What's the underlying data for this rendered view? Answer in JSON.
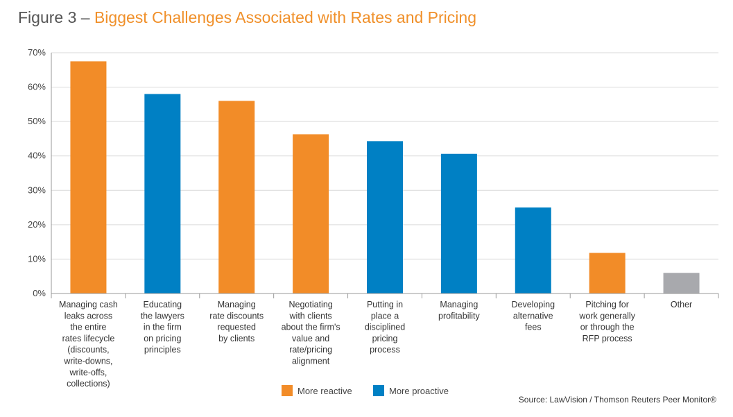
{
  "title": {
    "prefix": "Figure 3 – ",
    "main": "Biggest Challenges Associated with Rates and Pricing"
  },
  "source": "Source: LawVision / Thomson Reuters Peer Monitor®",
  "colors": {
    "reactive": "#f28c28",
    "proactive": "#0080c4",
    "other": "#a8a9ad",
    "grid": "#d9d9d9",
    "axis": "#999999"
  },
  "chart_data": {
    "type": "bar",
    "title": "Biggest Challenges Associated with Rates and Pricing",
    "xlabel": "",
    "ylabel": "",
    "ylim": [
      0,
      70
    ],
    "yticks": [
      0,
      10,
      20,
      30,
      40,
      50,
      60,
      70
    ],
    "ytick_labels": [
      "0%",
      "10%",
      "20%",
      "30%",
      "40%",
      "50%",
      "60%",
      "70%"
    ],
    "grid": true,
    "legend_position": "bottom-center",
    "legend": [
      {
        "name": "More reactive",
        "color": "#f28c28"
      },
      {
        "name": "More proactive",
        "color": "#0080c4"
      }
    ],
    "categories": [
      [
        "Managing cash",
        "leaks across",
        "the entire",
        "rates lifecycle",
        "(discounts,",
        "write-downs,",
        "write-offs,",
        "collections)"
      ],
      [
        "Educating",
        "the lawyers",
        "in the firm",
        "on pricing",
        "principles"
      ],
      [
        "Managing",
        "rate discounts",
        "requested",
        "by clients"
      ],
      [
        "Negotiating",
        "with clients",
        "about the firm's",
        "value and",
        "rate/pricing",
        "alignment"
      ],
      [
        "Putting in",
        "place a",
        "disciplined",
        "pricing",
        "process"
      ],
      [
        "Managing",
        "profitability"
      ],
      [
        "Developing",
        "alternative",
        "fees"
      ],
      [
        "Pitching for",
        "work generally",
        "or through the",
        "RFP process"
      ],
      [
        "Other"
      ]
    ],
    "values": [
      67.5,
      58,
      56,
      46.3,
      44.3,
      40.6,
      25,
      11.8,
      6
    ],
    "groups": [
      "reactive",
      "proactive",
      "reactive",
      "reactive",
      "proactive",
      "proactive",
      "proactive",
      "reactive",
      "other"
    ]
  }
}
